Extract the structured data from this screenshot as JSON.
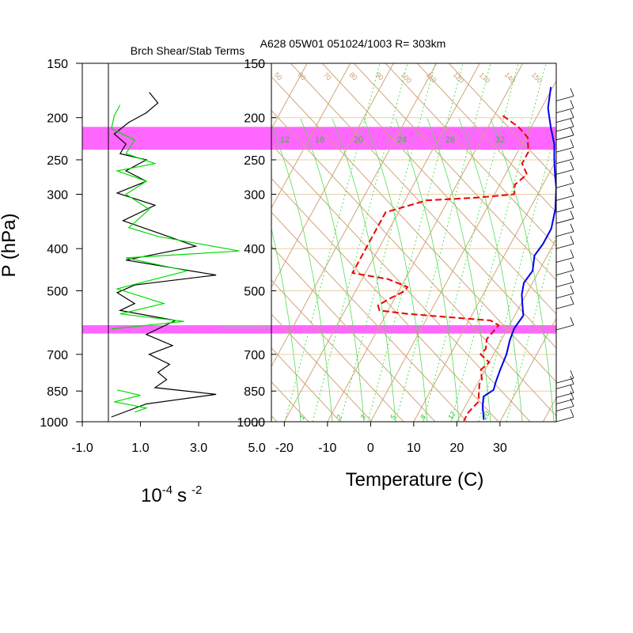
{
  "chart_data": [
    {
      "type": "line",
      "title": "Brch Shear/Stab Terms",
      "xlabel_base": "10",
      "xlabel_exp1": "-4",
      "xlabel_unit": "s",
      "xlabel_exp2": "-2",
      "ylabel": "P (hPa)",
      "yscale": "log",
      "xlim": [
        -1.0,
        5.5
      ],
      "ylim": [
        1000,
        150
      ],
      "xticks": [
        -1.0,
        1.0,
        3.0,
        5.0
      ],
      "xtick_labels": [
        "-1.0",
        "1.0",
        "3.0",
        "5.0"
      ],
      "yticks": [
        150,
        200,
        250,
        300,
        400,
        500,
        700,
        850,
        1000
      ],
      "ytick_labels": [
        "150",
        "200",
        "250",
        "300",
        "400",
        "500",
        "700",
        "850",
        "1000"
      ],
      "zero_line": 0,
      "colors": {
        "black": "#000000",
        "green": "#00dd00",
        "band": "#ff66ff",
        "grid": "#e8cfa8"
      },
      "highlight_bands": [
        [
          210,
          237
        ],
        [
          600,
          627
        ]
      ],
      "series": [
        {
          "color": "black",
          "points": [
            [
              1.3,
              175
            ],
            [
              1.6,
              185
            ],
            [
              1.2,
              195
            ],
            [
              0.6,
              205
            ],
            [
              0.1,
              218
            ],
            [
              0.5,
              230
            ],
            [
              0.3,
              242
            ],
            [
              1.2,
              250
            ],
            [
              0.5,
              265
            ],
            [
              1.2,
              280
            ],
            [
              0.2,
              298
            ],
            [
              1.5,
              318
            ],
            [
              0.4,
              345
            ],
            [
              1.7,
              370
            ],
            [
              2.9,
              395
            ],
            [
              0.5,
              425
            ],
            [
              3.6,
              460
            ],
            [
              0.8,
              485
            ],
            [
              0.2,
              505
            ],
            [
              0.8,
              535
            ],
            [
              0.3,
              555
            ],
            [
              2.2,
              585
            ],
            [
              1.2,
              630
            ],
            [
              2.1,
              668
            ],
            [
              1.3,
              700
            ],
            [
              2.0,
              738
            ],
            [
              1.6,
              770
            ],
            [
              1.9,
              800
            ],
            [
              1.5,
              835
            ],
            [
              3.6,
              865
            ],
            [
              1.2,
              910
            ],
            [
              0.0,
              975
            ]
          ]
        },
        {
          "color": "green",
          "points": [
            [
              0.3,
              187
            ],
            [
              0.1,
              198
            ],
            [
              0.0,
              212
            ],
            [
              0.8,
              225
            ],
            [
              0.5,
              242
            ],
            [
              1.5,
              255
            ],
            [
              0.2,
              265
            ],
            [
              1.2,
              280
            ],
            [
              0.5,
              300
            ],
            [
              1.3,
              325
            ],
            [
              0.6,
              358
            ],
            [
              1.6,
              375
            ],
            [
              4.4,
              405
            ],
            [
              0.5,
              420
            ],
            [
              2.6,
              450
            ],
            [
              0.2,
              495
            ],
            [
              1.8,
              535
            ],
            [
              0.3,
              565
            ],
            [
              2.5,
              588
            ],
            [
              0.0,
              612
            ]
          ]
        },
        {
          "color": "green",
          "points": [
            [
              0.2,
              845
            ],
            [
              1.0,
              870
            ],
            [
              0.1,
              900
            ],
            [
              1.2,
              930
            ],
            [
              0.8,
              950
            ]
          ]
        }
      ]
    },
    {
      "type": "line",
      "title": "A628 05W01 051024/1003 R= 303km",
      "subtype": "skew-T log-P",
      "xlabel": "Temperature (C)",
      "yscale": "log",
      "xlim": [
        -23,
        43
      ],
      "ylim": [
        1000,
        150
      ],
      "xticks": [
        -20,
        -10,
        0,
        10,
        20,
        30
      ],
      "xtick_labels": [
        "-20",
        "-10",
        "0",
        "10",
        "20",
        "30"
      ],
      "yticks": [
        150,
        200,
        250,
        300,
        400,
        500,
        700,
        850,
        1000
      ],
      "ytick_labels": [
        "150",
        "200",
        "250",
        "300",
        "400",
        "500",
        "700",
        "850",
        "1000"
      ],
      "mixing_ratio_labels": [
        "1",
        "2",
        "3",
        "5",
        "8",
        "12",
        "20"
      ],
      "theta_e_labels": [
        "12",
        "16",
        "20",
        "24",
        "28",
        "32"
      ],
      "dry_adiabat_labels": [
        "50",
        "60",
        "70",
        "80",
        "90",
        "100",
        "110",
        "120",
        "130",
        "140",
        "150"
      ],
      "highlight_bands": [
        [
          210,
          237
        ],
        [
          600,
          627
        ]
      ],
      "series": [
        {
          "color": "#0000ee",
          "style": "solid",
          "label": "temperature",
          "points": [
            [
              -0.5,
              170
            ],
            [
              1.5,
              190
            ],
            [
              4.5,
              210
            ],
            [
              7.5,
              230
            ],
            [
              9.5,
              250
            ],
            [
              11.5,
              270
            ],
            [
              13.5,
              290
            ],
            [
              16,
              325
            ],
            [
              17.5,
              360
            ],
            [
              17.5,
              390
            ],
            [
              17,
              415
            ],
            [
              18.5,
              450
            ],
            [
              18,
              480
            ],
            [
              19,
              510
            ],
            [
              20.5,
              540
            ],
            [
              22,
              570
            ],
            [
              21.5,
              610
            ],
            [
              22,
              650
            ],
            [
              23,
              700
            ],
            [
              23.5,
              760
            ],
            [
              24,
              810
            ],
            [
              24.5,
              845
            ],
            [
              23,
              875
            ],
            [
              24,
              920
            ],
            [
              26,
              990
            ]
          ]
        },
        {
          "color": "#ee0000",
          "style": "dashed",
          "label": "dewpoint",
          "points": [
            [
              -8,
              198
            ],
            [
              -3,
              210
            ],
            [
              0.5,
              222
            ],
            [
              2.5,
              240
            ],
            [
              2.5,
              255
            ],
            [
              5,
              270
            ],
            [
              3.5,
              285
            ],
            [
              4.5,
              300
            ],
            [
              -3,
              305
            ],
            [
              -15,
              310
            ],
            [
              -23,
              330
            ],
            [
              -23,
              455
            ],
            [
              -14,
              470
            ],
            [
              -8.5,
              490
            ],
            [
              -8.5,
              500
            ],
            [
              -11,
              520
            ],
            [
              -13,
              540
            ],
            [
              -12,
              555
            ],
            [
              -5,
              565
            ],
            [
              5,
              575
            ],
            [
              15,
              585
            ],
            [
              17.5,
              600
            ],
            [
              16.5,
              645
            ],
            [
              17.5,
              680
            ],
            [
              17,
              700
            ],
            [
              20,
              730
            ],
            [
              19,
              760
            ],
            [
              20.5,
              800
            ],
            [
              20.5,
              820
            ],
            [
              21.5,
              860
            ],
            [
              22.5,
              900
            ],
            [
              21.5,
              950
            ],
            [
              21.5,
              995
            ]
          ]
        }
      ]
    },
    {
      "type": "scatter",
      "subtype": "wind barbs",
      "levels_hPa": [
        183,
        195,
        205,
        215,
        225,
        240,
        255,
        270,
        290,
        310,
        330,
        350,
        375,
        400,
        430,
        460,
        490,
        520,
        550,
        615,
        815,
        840,
        880,
        910,
        945,
        1000
      ]
    }
  ]
}
